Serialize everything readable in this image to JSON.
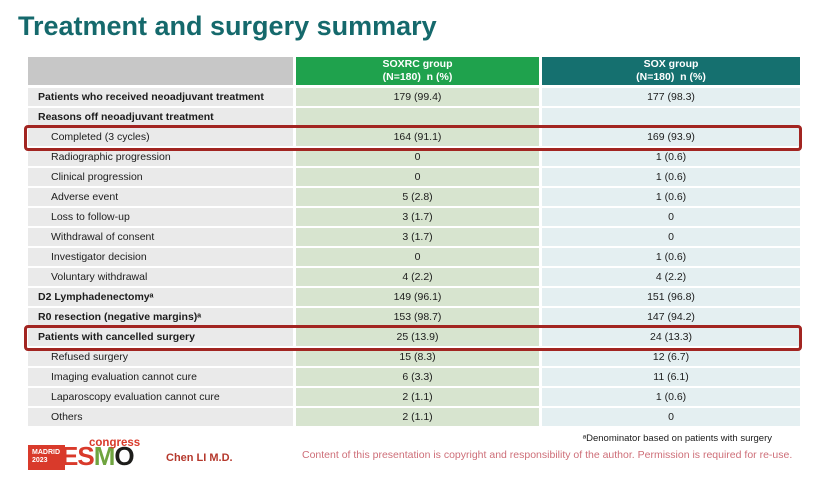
{
  "title": "Treatment and surgery summary",
  "table": {
    "columns": [
      {
        "line1": "SOXRC group",
        "line2": "(N=180)  n (%)"
      },
      {
        "line1": "SOX group",
        "line2": "(N=180)  n (%)"
      }
    ],
    "rows": [
      {
        "label": "Patients who received neoadjuvant treatment",
        "soxrc": "179 (99.4)",
        "sox": "177 (98.3)",
        "bold": true
      },
      {
        "label": "Reasons off neoadjuvant treatment",
        "soxrc": "",
        "sox": "",
        "bold": true
      },
      {
        "label": "Completed (3 cycles)",
        "soxrc": "164 (91.1)",
        "sox": "169 (93.9)",
        "indent": true,
        "highlight": true
      },
      {
        "label": "Radiographic progression",
        "soxrc": "0",
        "sox": "1 (0.6)",
        "indent": true
      },
      {
        "label": "Clinical progression",
        "soxrc": "0",
        "sox": "1 (0.6)",
        "indent": true
      },
      {
        "label": "Adverse event",
        "soxrc": "5 (2.8)",
        "sox": "1 (0.6)",
        "indent": true
      },
      {
        "label": "Loss to follow-up",
        "soxrc": "3 (1.7)",
        "sox": "0",
        "indent": true
      },
      {
        "label": "Withdrawal of consent",
        "soxrc": "3 (1.7)",
        "sox": "0",
        "indent": true
      },
      {
        "label": "Investigator decision",
        "soxrc": "0",
        "sox": "1 (0.6)",
        "indent": true
      },
      {
        "label": "Voluntary withdrawal",
        "soxrc": "4 (2.2)",
        "sox": "4 (2.2)",
        "indent": true
      },
      {
        "label": "D2 Lymphadenectomyᵃ",
        "soxrc": "149 (96.1)",
        "sox": "151 (96.8)",
        "bold": true
      },
      {
        "label": "R0 resection (negative margins)ᵃ",
        "soxrc": "153 (98.7)",
        "sox": "147 (94.2)",
        "bold": true
      },
      {
        "label": "Patients with cancelled surgery",
        "soxrc": "25 (13.9)",
        "sox": "24 (13.3)",
        "bold": true,
        "highlight": true
      },
      {
        "label": "Refused surgery",
        "soxrc": "15 (8.3)",
        "sox": "12 (6.7)",
        "indent": true
      },
      {
        "label": "Imaging evaluation cannot cure",
        "soxrc": "6 (3.3)",
        "sox": "11 (6.1)",
        "indent": true
      },
      {
        "label": "Laparoscopy evaluation cannot cure",
        "soxrc": "2 (1.1)",
        "sox": "1 (0.6)",
        "indent": true
      },
      {
        "label": "Others",
        "soxrc": "2 (1.1)",
        "sox": "0",
        "indent": true
      }
    ]
  },
  "footer": {
    "logo": {
      "badge_line1": "MADRID",
      "badge_line2": "2023",
      "letters": [
        "E",
        "S",
        "M",
        "O"
      ],
      "congress": "congress"
    },
    "presenter": "Chen LI M.D.",
    "footnote": "ᵃDenominator based on patients with surgery",
    "copyright": "Content of this presentation is copyright and responsibility of the author. Permission is required for re-use."
  },
  "colors": {
    "title": "#15696c",
    "header_soxrc": "#1fa24d",
    "header_sox": "#15706f",
    "header_label_gray": "#c7c7c7",
    "cell_label_gray": "#eaeaea",
    "cell_soxrc_green": "#d7e4cf",
    "cell_sox_blue": "#e4eff1",
    "highlight_red": "#a22521",
    "logo_red": "#d93a2b",
    "logo_green": "#6fa43f",
    "presenter_red": "#b5382c",
    "copyright_pink": "#ce6e78"
  }
}
